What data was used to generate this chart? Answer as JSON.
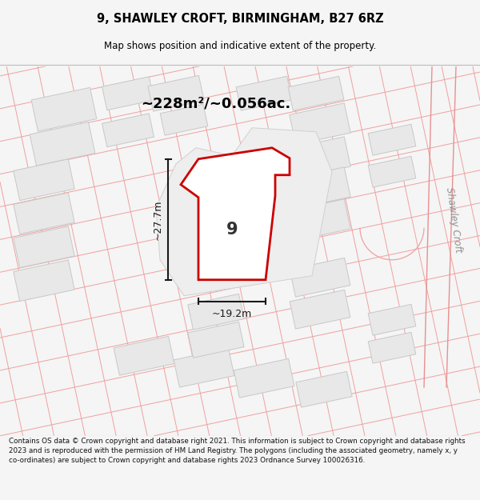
{
  "title": "9, SHAWLEY CROFT, BIRMINGHAM, B27 6RZ",
  "subtitle": "Map shows position and indicative extent of the property.",
  "area_text": "~228m²/~0.056ac.",
  "width_label": "~19.2m",
  "height_label": "~27.7m",
  "number_label": "9",
  "street_label": "Shawley Croft",
  "footer_text": "Contains OS data © Crown copyright and database right 2021. This information is subject to Crown copyright and database rights 2023 and is reproduced with the permission of HM Land Registry. The polygons (including the associated geometry, namely x, y co-ordinates) are subject to Crown copyright and database rights 2023 Ordnance Survey 100026316.",
  "bg_color": "#f5f5f5",
  "map_bg_color": "#ffffff",
  "building_fill": "#e8e8e8",
  "building_edge": "#c8c8c8",
  "boundary_color": "#f0a0a0",
  "road_boundary_color": "#e89090",
  "subject_fill": "#ffffff",
  "subject_edge": "#cc0000",
  "dim_color": "#1a1a1a",
  "title_color": "#000000",
  "area_color": "#000000",
  "footer_color": "#111111",
  "street_label_color": "#909090"
}
